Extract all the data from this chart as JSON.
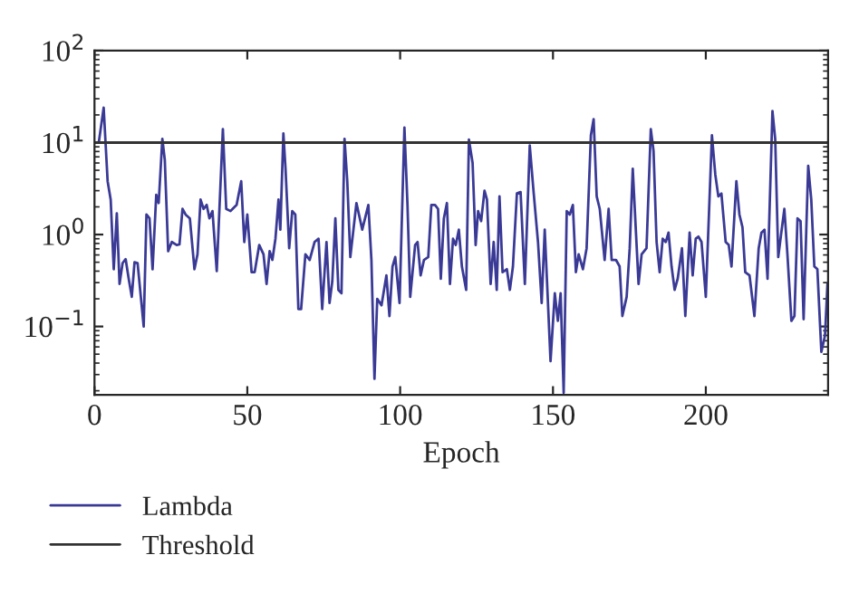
{
  "chart_data": {
    "type": "line",
    "xlabel": "Epoch",
    "log": "y",
    "xlim": [
      0,
      240
    ],
    "xticks": [
      0,
      50,
      100,
      150,
      200
    ],
    "ylim": [
      0.018,
      100
    ],
    "yticks": [
      {
        "value": 0.1,
        "label": "10$^{−1}$"
      },
      {
        "value": 1,
        "label": "10$^{0}$"
      },
      {
        "value": 10,
        "label": "10$^{1}$"
      },
      {
        "value": 100,
        "label": "10$^{2}$"
      }
    ],
    "grid": false,
    "legend": "bottom left",
    "marker": "none",
    "line_style": "solid",
    "series": [
      {
        "name": "Lambda",
        "color": "#3a3a96",
        "x": [
          1.4,
          3,
          4.3,
          5.3,
          6.3,
          7.3,
          8.2,
          9.2,
          10.2,
          11.2,
          12.2,
          13.1,
          14.1,
          16.1,
          17,
          18,
          19,
          20.2,
          21,
          22.2,
          23,
          24.1,
          25.3,
          26.9,
          27.8,
          28.8,
          29.8,
          31.2,
          32.7,
          33.7,
          34.7,
          35.7,
          36.7,
          37.6,
          38.6,
          40,
          42,
          43.1,
          44.5,
          46.5,
          48,
          49,
          50,
          51.4,
          52.4,
          53.9,
          55.3,
          56.3,
          57.3,
          58.2,
          59.2,
          60.2,
          60.8,
          61.8,
          62.5,
          63.7,
          64.7,
          65.7,
          66.7,
          67.6,
          69,
          70.4,
          72,
          73.3,
          74.5,
          75.9,
          76.9,
          77.8,
          78.8,
          79.8,
          80.8,
          81.8,
          82.7,
          83.7,
          85.7,
          87.6,
          89.6,
          90.6,
          91.6,
          92.5,
          93.9,
          95.5,
          96.5,
          97.5,
          98.4,
          99.8,
          101.4,
          102.4,
          103.3,
          104.9,
          105.7,
          106.7,
          107.8,
          109.2,
          110.2,
          111.4,
          112.4,
          113.3,
          114.3,
          115.3,
          116.3,
          117.3,
          118.2,
          119.2,
          120.2,
          121.6,
          122.5,
          123.7,
          124.7,
          125.5,
          126.5,
          127.6,
          128.4,
          129.6,
          130.6,
          131.6,
          132.5,
          133.5,
          134.9,
          135.9,
          136.9,
          138.2,
          139.4,
          140.8,
          142.4,
          143.7,
          145.1,
          146.3,
          147.3,
          149.2,
          150.6,
          151.6,
          152.5,
          153.5,
          154.5,
          155.5,
          156.5,
          157.5,
          158.4,
          159.8,
          161,
          162.4,
          163.3,
          164.3,
          165.3,
          166.9,
          168.2,
          169.2,
          170.6,
          171.8,
          172.7,
          174.1,
          175.1,
          176.1,
          177.1,
          178,
          179,
          180.6,
          182,
          182.9,
          183.9,
          184.9,
          185.9,
          186.9,
          187.8,
          188.8,
          189.8,
          190.8,
          192.2,
          193.3,
          194.7,
          195.7,
          196.7,
          197.6,
          198.6,
          200,
          202,
          203.1,
          204.1,
          205.1,
          206.5,
          207.5,
          208.4,
          210,
          211,
          212,
          212.9,
          214.3,
          215.9,
          217.3,
          218.2,
          219.2,
          220.2,
          221.8,
          222.7,
          223.7,
          224.7,
          225.7,
          226.7,
          228,
          229,
          230,
          231,
          232,
          233.5,
          234.5,
          235.5,
          236.5,
          237.8,
          239,
          239.8
        ],
        "values": [
          10,
          24,
          3.8,
          2.4,
          0.42,
          1.7,
          0.29,
          0.49,
          0.54,
          0.33,
          0.21,
          0.5,
          0.49,
          0.1,
          1.65,
          1.5,
          0.42,
          2.7,
          2.2,
          11,
          6.5,
          0.66,
          0.83,
          0.77,
          0.78,
          1.9,
          1.65,
          1.5,
          0.42,
          0.61,
          2.4,
          1.9,
          2.1,
          1.5,
          1.8,
          0.4,
          14,
          1.9,
          1.8,
          2.1,
          3.8,
          0.83,
          1.65,
          0.39,
          0.39,
          0.77,
          0.61,
          0.29,
          0.66,
          0.53,
          0.9,
          2.4,
          1.13,
          12.6,
          5.2,
          0.71,
          1.8,
          1.65,
          0.155,
          0.155,
          0.61,
          0.53,
          0.83,
          0.9,
          0.155,
          0.83,
          0.18,
          0.31,
          1.5,
          0.25,
          0.23,
          11,
          3.8,
          0.57,
          2.2,
          1.13,
          2.1,
          0.53,
          0.027,
          0.2,
          0.17,
          0.36,
          0.13,
          0.45,
          0.57,
          0.18,
          14.6,
          2.1,
          0.21,
          0.77,
          0.83,
          0.36,
          0.53,
          0.57,
          2.1,
          2.1,
          1.9,
          0.33,
          1.5,
          2.2,
          0.29,
          0.9,
          0.77,
          1.13,
          0.45,
          0.25,
          10.8,
          6,
          0.77,
          1.8,
          1.4,
          3,
          2.4,
          0.29,
          0.83,
          0.25,
          2.6,
          0.39,
          0.42,
          0.25,
          0.45,
          2.8,
          2.9,
          0.29,
          9.3,
          2.8,
          0.83,
          0.18,
          1.13,
          0.042,
          0.23,
          0.115,
          0.23,
          0.019,
          1.8,
          1.65,
          2.1,
          0.39,
          0.61,
          0.42,
          0.71,
          12,
          18,
          2.6,
          1.9,
          0.53,
          1.9,
          0.53,
          0.53,
          0.45,
          0.13,
          0.21,
          0.71,
          5.2,
          1.13,
          0.29,
          0.61,
          0.71,
          14,
          8.1,
          0.83,
          0.39,
          0.9,
          0.83,
          1.05,
          0.45,
          0.25,
          0.33,
          0.71,
          0.13,
          1.05,
          0.36,
          0.9,
          0.95,
          0.83,
          0.21,
          12,
          4.5,
          2.6,
          2.8,
          0.83,
          0.77,
          0.45,
          3.8,
          1.65,
          1.2,
          0.39,
          0.36,
          0.13,
          0.71,
          1.05,
          1.13,
          0.33,
          22,
          11,
          0.57,
          1.05,
          1.9,
          0.61,
          0.115,
          0.13,
          1.5,
          1.4,
          0.12,
          5.6,
          2.4,
          0.45,
          0.42,
          0.053,
          0.08,
          0.29
        ]
      },
      {
        "name": "Threshold",
        "color": "#333333",
        "x": [
          0,
          240
        ],
        "values": [
          10,
          10
        ]
      }
    ]
  }
}
